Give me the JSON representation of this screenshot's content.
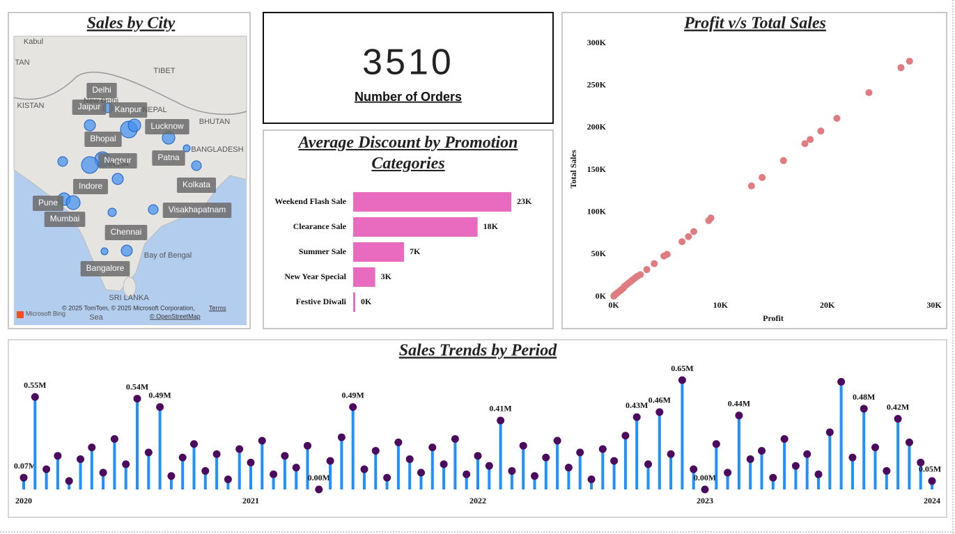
{
  "map": {
    "title": "Sales by City",
    "cities": [
      "Delhi",
      "Jaipur",
      "Kanpur",
      "Lucknow",
      "Bhopal",
      "Nagpur",
      "Patna",
      "Indore",
      "Kolkata",
      "Pune",
      "Visakhapatnam",
      "Mumbai",
      "Chennai",
      "Bangalore"
    ],
    "places": [
      "Kabul",
      "TAN",
      "KISTAN",
      "TIBET",
      "New Delhi",
      "NEPAL",
      "BHUTAN",
      "BANGLADESH",
      "INDIA",
      "Bay of Bengal",
      "SRI LANKA",
      "Sea"
    ],
    "attribution": "© 2025 TomTom, © 2025 Microsoft Corporation,",
    "terms": "Terms",
    "osm": "© OpenStreetMap",
    "brand": "Microsoft Bing"
  },
  "kpi": {
    "value": "3510",
    "label": "Number of Orders"
  },
  "chart_data": [
    {
      "type": "bar",
      "orientation": "horizontal",
      "title": "Average Discount by Promotion Categories",
      "categories": [
        "Weekend Flash Sale",
        "Clearance Sale",
        "Summer Sale",
        "New Year Special",
        "Festive Diwali"
      ],
      "values": [
        23,
        18.1,
        7.4,
        3.2,
        0.3
      ],
      "value_labels": [
        "23K",
        "18K",
        "7K",
        "3K",
        "0K"
      ],
      "color": "#e86bbf"
    },
    {
      "type": "scatter",
      "title": "Profit v/s Total Sales",
      "xlabel": "Profit",
      "ylabel": "Total Sales",
      "color": "#e07b7f",
      "x": [
        27.7,
        26.9,
        23.9,
        20.9,
        19.4,
        18.4,
        17.9,
        15.9,
        13.9,
        12.9,
        9.1,
        8.9,
        7.5,
        7.0,
        6.4,
        5.0,
        4.7,
        3.8,
        3.1,
        2.5,
        2.2,
        2.0,
        1.8,
        1.6,
        1.4,
        1.2,
        1.0,
        0.9,
        0.7,
        0.6,
        0.4,
        0.3,
        0.2,
        0.1,
        0.05,
        0.02
      ],
      "values": [
        278.6,
        271,
        241.5,
        211,
        196,
        186,
        181,
        161,
        141,
        131,
        93,
        90,
        77,
        71,
        65,
        50,
        48,
        39,
        32,
        26,
        24,
        22,
        20,
        18,
        16,
        14,
        12,
        10,
        8,
        7,
        5,
        4,
        3,
        2,
        1,
        0.5
      ],
      "xlim": [
        0,
        30
      ],
      "ylim": [
        0,
        300
      ],
      "xticks": [
        {
          "value": 0,
          "label": "0K"
        },
        {
          "value": 10,
          "label": "10K"
        },
        {
          "value": 20,
          "label": "20K"
        },
        {
          "value": 30,
          "label": "30K"
        }
      ],
      "yticks": [
        {
          "value": 0,
          "label": "0K"
        },
        {
          "value": 50,
          "label": "50K"
        },
        {
          "value": 100,
          "label": "100K"
        },
        {
          "value": 150,
          "label": "150K"
        },
        {
          "value": 200,
          "label": "200K"
        },
        {
          "value": 250,
          "label": "250K"
        },
        {
          "value": 300,
          "label": "300K"
        }
      ]
    },
    {
      "type": "lollipop",
      "title": "Sales Trends by Period",
      "stem_color": "#1e90ff",
      "color": "#4b0a5e",
      "x": [
        2020,
        2020.05,
        2020.1,
        2020.15,
        2020.2,
        2020.25,
        2020.3,
        2020.35,
        2020.4,
        2020.45,
        2020.5,
        2020.55,
        2020.6,
        2020.65,
        2020.7,
        2020.75,
        2020.8,
        2020.85,
        2020.9,
        2020.95,
        2021,
        2021.05,
        2021.1,
        2021.15,
        2021.2,
        2021.25,
        2021.3,
        2021.35,
        2021.4,
        2021.45,
        2021.5,
        2021.55,
        2021.6,
        2021.65,
        2021.7,
        2021.75,
        2021.8,
        2021.85,
        2021.9,
        2021.95,
        2022,
        2022.05,
        2022.1,
        2022.15,
        2022.2,
        2022.25,
        2022.3,
        2022.35,
        2022.4,
        2022.45,
        2022.5,
        2022.55,
        2022.6,
        2022.65,
        2022.7,
        2022.75,
        2022.8,
        2022.85,
        2022.9,
        2022.95,
        2023,
        2023.05,
        2023.1,
        2023.15,
        2023.2,
        2023.25,
        2023.3,
        2023.35,
        2023.4,
        2023.45,
        2023.5,
        2023.55,
        2023.6,
        2023.65,
        2023.7,
        2023.75,
        2023.8,
        2023.85,
        2023.9,
        2023.95,
        2024
      ],
      "values": [
        0.07,
        0.55,
        0.12,
        0.2,
        0.05,
        0.18,
        0.25,
        0.1,
        0.3,
        0.15,
        0.54,
        0.22,
        0.49,
        0.08,
        0.19,
        0.27,
        0.11,
        0.21,
        0.06,
        0.24,
        0.16,
        0.29,
        0.09,
        0.2,
        0.13,
        0.26,
        0,
        0.17,
        0.31,
        0.49,
        0.12,
        0.23,
        0.07,
        0.28,
        0.18,
        0.1,
        0.25,
        0.15,
        0.3,
        0.09,
        0.2,
        0.14,
        0.41,
        0.11,
        0.26,
        0.08,
        0.19,
        0.29,
        0.13,
        0.22,
        0.06,
        0.24,
        0.17,
        0.32,
        0.43,
        0.15,
        0.46,
        0.21,
        0.65,
        0.12,
        0,
        0.27,
        0.1,
        0.44,
        0.18,
        0.23,
        0.07,
        0.3,
        0.14,
        0.21,
        0.09,
        0.34,
        0.64,
        0.19,
        0.48,
        0.25,
        0.11,
        0.42,
        0.28,
        0.16,
        0.05
      ],
      "value_labels": [
        "0.07M",
        "0.55M",
        null,
        null,
        null,
        null,
        null,
        null,
        null,
        null,
        "0.54M",
        null,
        "0.49M",
        null,
        null,
        null,
        null,
        null,
        null,
        null,
        null,
        null,
        null,
        null,
        null,
        null,
        "0.00M",
        null,
        null,
        "0.49M",
        null,
        null,
        null,
        null,
        null,
        null,
        null,
        null,
        null,
        null,
        null,
        null,
        "0.41M",
        null,
        null,
        null,
        null,
        null,
        null,
        null,
        null,
        null,
        null,
        null,
        "0.43M",
        null,
        "0.46M",
        null,
        "0.65M",
        null,
        "0.00M",
        null,
        null,
        "0.44M",
        null,
        null,
        null,
        null,
        null,
        null,
        null,
        null,
        null,
        null,
        "0.48M",
        null,
        null,
        "0.42M",
        null,
        null,
        "0.05M"
      ],
      "xlim": [
        2020,
        2024
      ],
      "xticks": [
        2020,
        2021,
        2022,
        2023,
        2024
      ]
    }
  ]
}
